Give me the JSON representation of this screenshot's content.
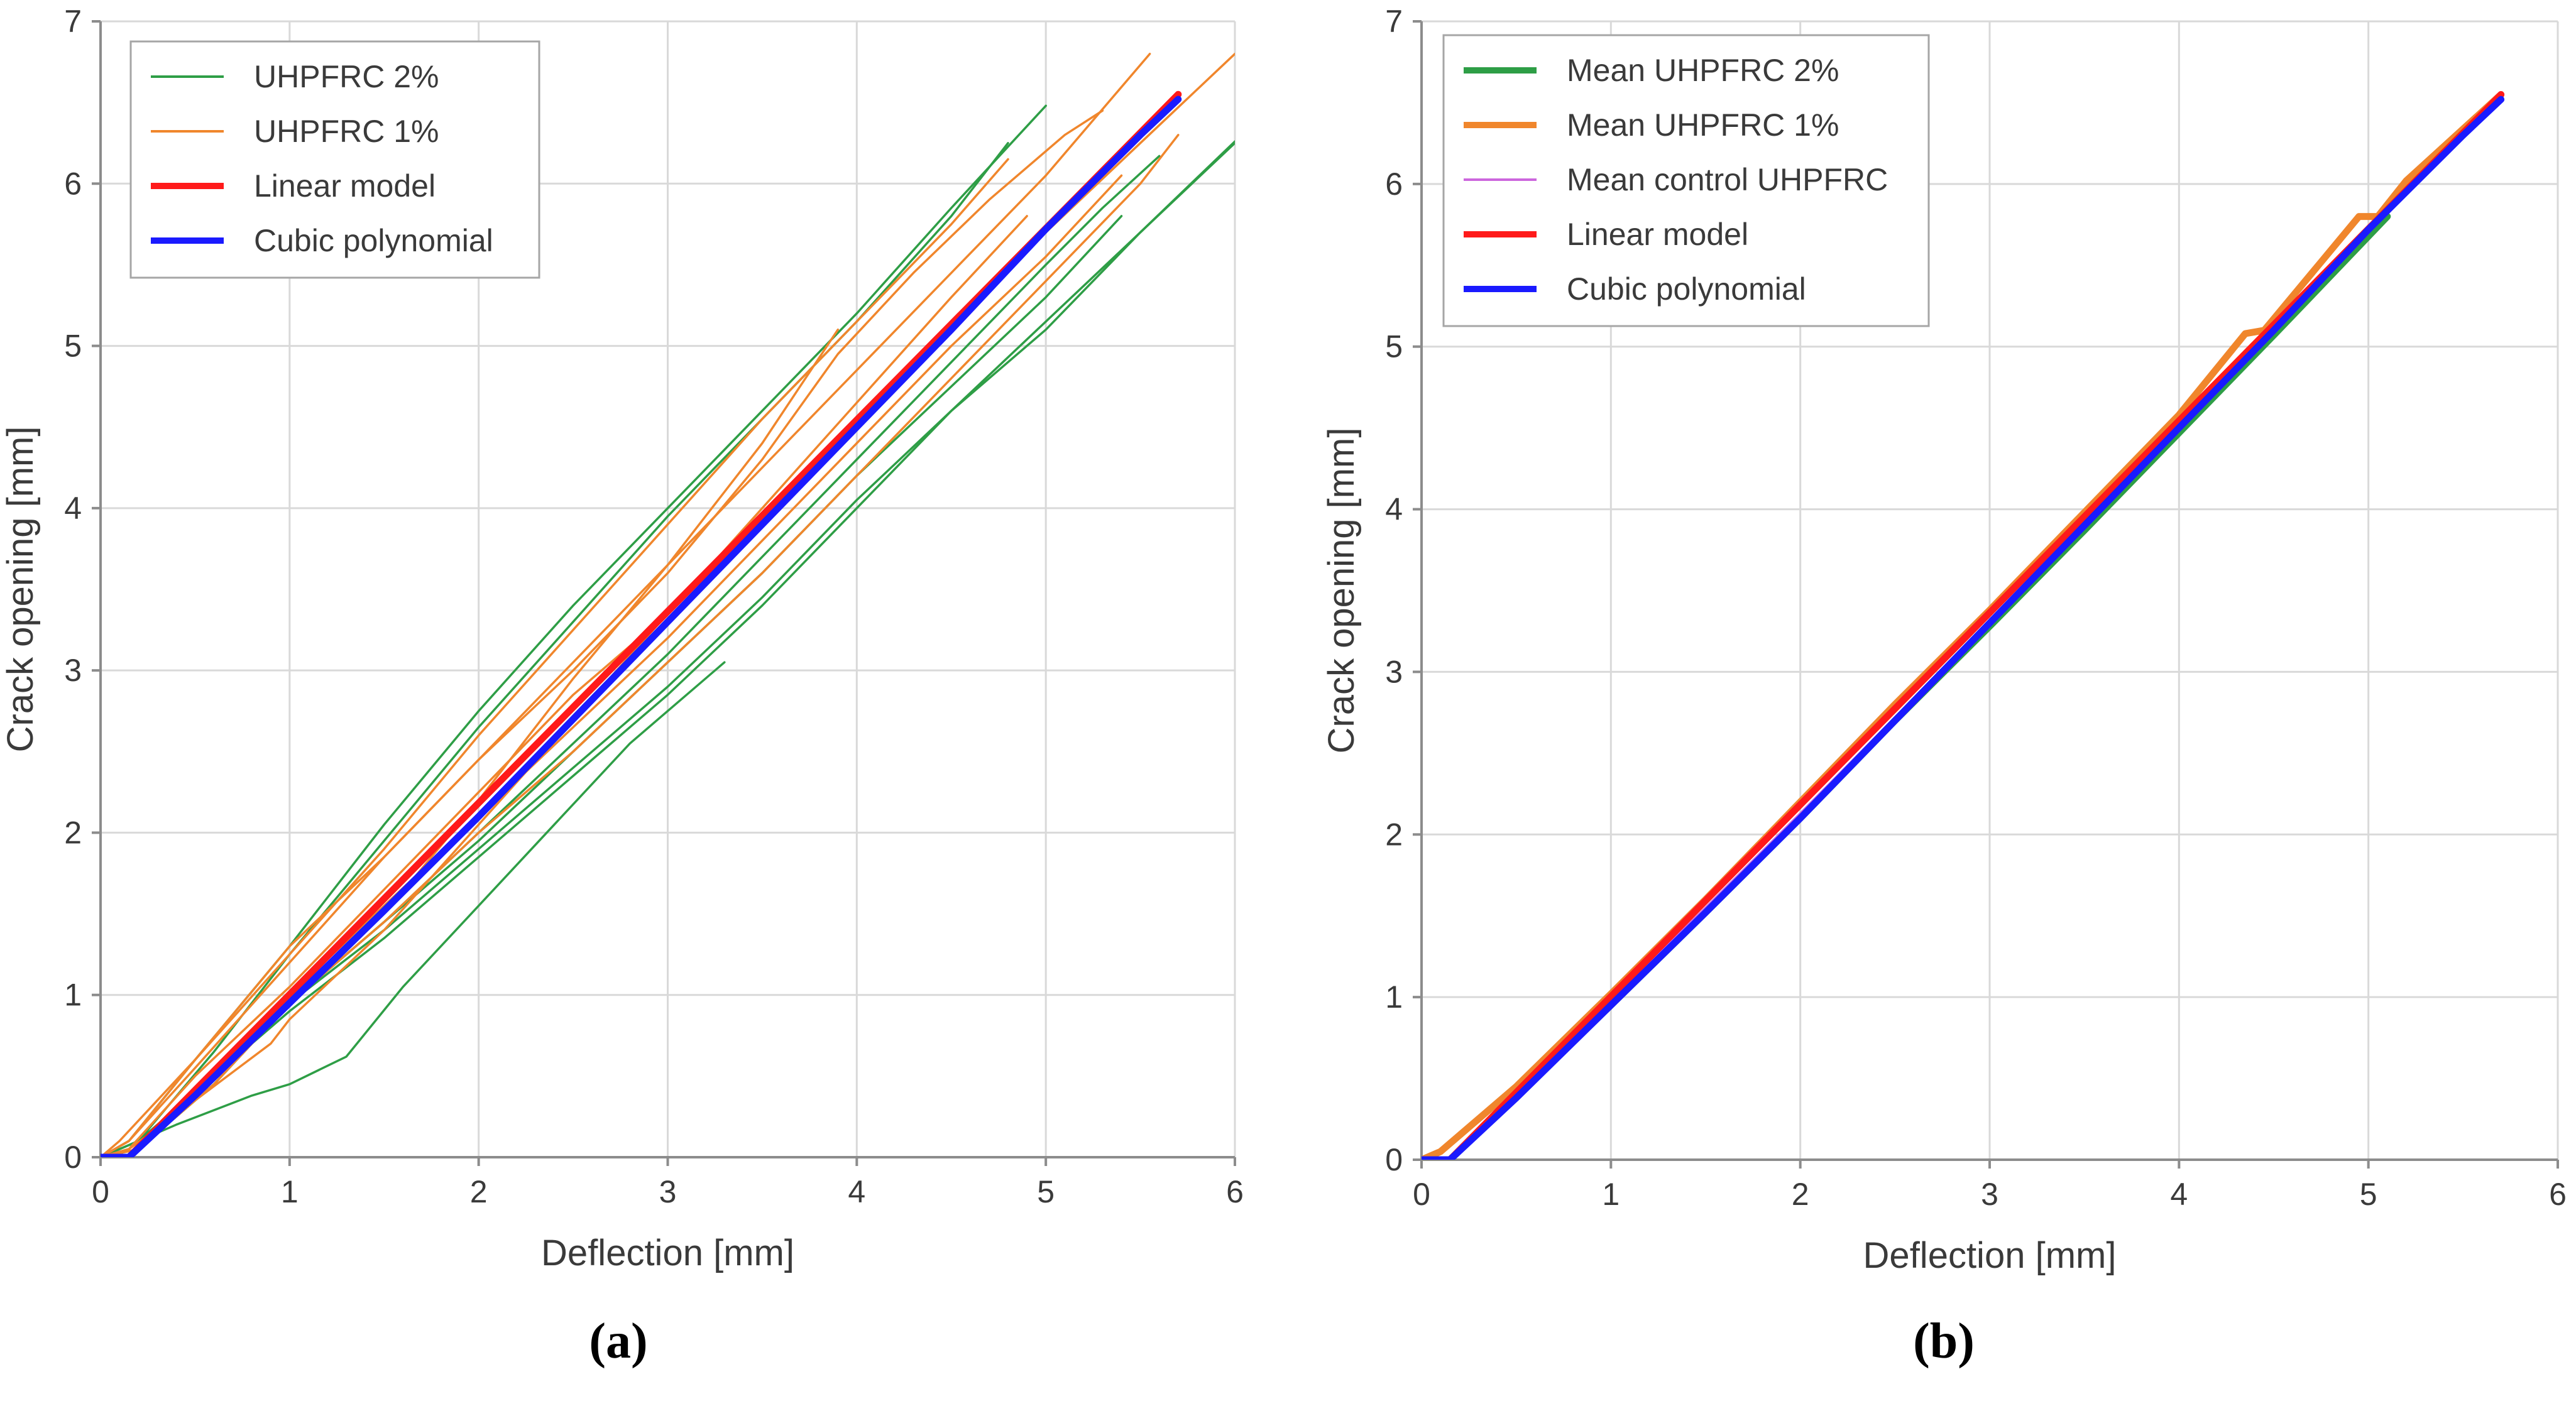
{
  "chart_data": [
    {
      "panel": "a",
      "type": "line",
      "title": "",
      "xlabel": "Deflection [mm]",
      "ylabel": "Crack opening [mm]",
      "xlim": [
        0,
        6
      ],
      "ylim": [
        0,
        7
      ],
      "xticks": [
        0,
        1,
        2,
        3,
        4,
        5,
        6
      ],
      "yticks": [
        0,
        1,
        2,
        3,
        4,
        5,
        6,
        7
      ],
      "grid": true,
      "legend_position": "top-left",
      "legend": [
        {
          "label": "UHPFRC 2%",
          "color": "#2e9e46",
          "weight": "thin"
        },
        {
          "label": "UHPFRC 1%",
          "color": "#f0862c",
          "weight": "thin"
        },
        {
          "label": "Linear model",
          "color": "#ff1a1a",
          "weight": "thick"
        },
        {
          "label": "Cubic polynomial",
          "color": "#1a1aff",
          "weight": "thick"
        }
      ],
      "series": [
        {
          "name": "UHPFRC 2%",
          "color": "#2e9e46",
          "width": "thin",
          "x": [
            0,
            0.15,
            0.5,
            1.0,
            1.5,
            2.0,
            2.5,
            3.0,
            3.5,
            4.0,
            4.5,
            5.0
          ],
          "y": [
            0,
            0.1,
            0.6,
            1.3,
            2.05,
            2.75,
            3.4,
            4.0,
            4.6,
            5.2,
            5.85,
            6.48
          ]
        },
        {
          "name": "UHPFRC 2%",
          "color": "#2e9e46",
          "width": "thin",
          "x": [
            0,
            0.2,
            0.6,
            1.0,
            1.5,
            2.0,
            2.5,
            3.0,
            3.5,
            4.0,
            4.5,
            4.8
          ],
          "y": [
            0,
            0.1,
            0.65,
            1.25,
            1.95,
            2.65,
            3.3,
            3.95,
            4.55,
            5.15,
            5.8,
            6.25
          ]
        },
        {
          "name": "UHPFRC 2%",
          "color": "#2e9e46",
          "width": "thin",
          "x": [
            0,
            0.15,
            0.5,
            1.0,
            1.5,
            2.0,
            2.5,
            3.0,
            3.5,
            4.0,
            4.5,
            5.0,
            5.5,
            6.0
          ],
          "y": [
            0,
            0.05,
            0.4,
            0.9,
            1.35,
            1.85,
            2.35,
            2.85,
            3.4,
            4.0,
            4.6,
            5.1,
            5.7,
            6.25
          ]
        },
        {
          "name": "UHPFRC 2%",
          "color": "#2e9e46",
          "width": "thin",
          "x": [
            0,
            0.2,
            0.6,
            1.0,
            1.5,
            2.0,
            2.5,
            3.0,
            3.5,
            4.0,
            4.5,
            5.0,
            5.5,
            6.0
          ],
          "y": [
            0,
            0.05,
            0.45,
            0.95,
            1.4,
            1.9,
            2.4,
            2.9,
            3.45,
            4.05,
            4.6,
            5.15,
            5.7,
            6.26
          ]
        },
        {
          "name": "UHPFRC 2%",
          "color": "#2e9e46",
          "width": "thin",
          "x": [
            0,
            0.2,
            0.6,
            1.0,
            1.5,
            2.0,
            2.5,
            3.0,
            3.5,
            4.0,
            4.5,
            5.0,
            5.4
          ],
          "y": [
            0,
            0.05,
            0.45,
            0.95,
            1.45,
            1.95,
            2.5,
            3.05,
            3.6,
            4.2,
            4.75,
            5.3,
            5.8
          ]
        },
        {
          "name": "UHPFRC 2%",
          "color": "#2e9e46",
          "width": "thin",
          "x": [
            0,
            0.2,
            0.6,
            1.0,
            1.5,
            2.0,
            2.5,
            3.0,
            3.5,
            4.0,
            4.5,
            5.0,
            5.3,
            5.6
          ],
          "y": [
            0,
            0.05,
            0.45,
            0.95,
            1.45,
            2.0,
            2.55,
            3.1,
            3.7,
            4.3,
            4.9,
            5.5,
            5.85,
            6.17
          ]
        },
        {
          "name": "UHPFRC 2%",
          "color": "#2e9e46",
          "width": "thin",
          "x": [
            0,
            0.1,
            0.4,
            0.8,
            1.0,
            1.3,
            1.6,
            2.0,
            2.4,
            2.8,
            3.3
          ],
          "y": [
            0,
            0.05,
            0.2,
            0.38,
            0.45,
            0.62,
            1.05,
            1.55,
            2.05,
            2.55,
            3.05
          ]
        },
        {
          "name": "UHPFRC 1%",
          "color": "#f0862c",
          "width": "thin",
          "x": [
            0,
            0.15,
            0.5,
            1.0,
            1.5,
            2.0,
            2.5,
            3.0,
            3.5,
            4.0,
            4.5,
            4.8
          ],
          "y": [
            0,
            0.1,
            0.6,
            1.25,
            1.9,
            2.6,
            3.25,
            3.9,
            4.55,
            5.15,
            5.75,
            6.15
          ]
        },
        {
          "name": "UHPFRC 1%",
          "color": "#f0862c",
          "width": "thin",
          "x": [
            0,
            0.15,
            0.5,
            1.0,
            1.5,
            2.0,
            2.5,
            3.0,
            3.5,
            3.9,
            4.3,
            4.7,
            5.1,
            5.3
          ],
          "y": [
            0,
            0.1,
            0.55,
            1.2,
            1.85,
            2.45,
            3.0,
            3.6,
            4.3,
            4.95,
            5.45,
            5.9,
            6.3,
            6.45
          ]
        },
        {
          "name": "UHPFRC 1%",
          "color": "#f0862c",
          "width": "thin",
          "x": [
            0,
            0.1,
            0.5,
            1.0,
            1.5,
            2.0,
            2.5,
            3.0,
            3.5,
            4.0,
            4.5,
            5.0,
            5.55
          ],
          "y": [
            0,
            0.1,
            0.6,
            1.3,
            1.85,
            2.45,
            3.05,
            3.65,
            4.25,
            4.85,
            5.45,
            6.05,
            6.8
          ]
        },
        {
          "name": "UHPFRC 1%",
          "color": "#f0862c",
          "width": "thin",
          "x": [
            0,
            0.15,
            0.5,
            1.0,
            1.5,
            2.0,
            2.5,
            3.0,
            3.5,
            4.0,
            4.5,
            5.0,
            5.5,
            6.0
          ],
          "y": [
            0,
            0.05,
            0.5,
            1.05,
            1.65,
            2.25,
            2.85,
            3.35,
            3.95,
            4.55,
            5.15,
            5.7,
            6.25,
            6.8
          ]
        },
        {
          "name": "UHPFRC 1%",
          "color": "#f0862c",
          "width": "thin",
          "x": [
            0,
            0.15,
            0.5,
            0.9,
            1.0,
            1.5,
            2.0,
            2.5,
            3.0,
            3.5,
            4.0,
            4.5,
            4.9
          ],
          "y": [
            0,
            0.05,
            0.35,
            0.7,
            0.85,
            1.4,
            2.05,
            2.7,
            3.35,
            4.0,
            4.65,
            5.3,
            5.8
          ]
        },
        {
          "name": "UHPFRC 1%",
          "color": "#f0862c",
          "width": "thin",
          "x": [
            0,
            0.2,
            0.6,
            1.0,
            1.5,
            2.0,
            2.5,
            3.0,
            3.5,
            4.0,
            4.5,
            5.0,
            5.5,
            5.7
          ],
          "y": [
            0,
            0.05,
            0.5,
            0.95,
            1.45,
            2.0,
            2.5,
            3.05,
            3.6,
            4.2,
            4.8,
            5.4,
            6.0,
            6.3
          ]
        },
        {
          "name": "UHPFRC 1%",
          "color": "#f0862c",
          "width": "thin",
          "x": [
            0,
            0.2,
            0.6,
            1.0,
            1.5,
            2.0,
            2.5,
            3.0,
            3.5,
            3.9
          ],
          "y": [
            0,
            0.05,
            0.45,
            0.95,
            1.5,
            2.2,
            2.95,
            3.65,
            4.4,
            5.1
          ]
        },
        {
          "name": "UHPFRC 1%",
          "color": "#f0862c",
          "width": "thin",
          "x": [
            0,
            0.2,
            0.6,
            1.0,
            1.5,
            2.0,
            2.5,
            3.0,
            3.5,
            4.0,
            4.5,
            5.0,
            5.4
          ],
          "y": [
            0,
            0.05,
            0.5,
            1.0,
            1.55,
            2.1,
            2.65,
            3.2,
            3.8,
            4.4,
            5.0,
            5.55,
            6.05
          ]
        },
        {
          "name": "Linear model",
          "color": "#ff1a1a",
          "width": "thick",
          "x": [
            0,
            0.15,
            5.7
          ],
          "y": [
            0,
            0,
            6.55
          ]
        },
        {
          "name": "Cubic polynomial",
          "color": "#1a1aff",
          "width": "thick",
          "x": [
            0,
            0.15,
            0.5,
            1.0,
            1.5,
            2.0,
            2.5,
            3.0,
            3.5,
            4.0,
            4.5,
            5.0,
            5.5,
            5.7
          ],
          "y": [
            0,
            0,
            0.38,
            0.95,
            1.52,
            2.1,
            2.7,
            3.3,
            3.9,
            4.5,
            5.1,
            5.72,
            6.3,
            6.52
          ]
        }
      ]
    },
    {
      "panel": "b",
      "type": "line",
      "title": "",
      "xlabel": "Deflection [mm]",
      "ylabel": "Crack opening [mm]",
      "xlim": [
        0,
        6
      ],
      "ylim": [
        0,
        7
      ],
      "xticks": [
        0,
        1,
        2,
        3,
        4,
        5,
        6
      ],
      "yticks": [
        0,
        1,
        2,
        3,
        4,
        5,
        6,
        7
      ],
      "grid": true,
      "legend_position": "top-left",
      "legend": [
        {
          "label": "Mean UHPFRC 2%",
          "color": "#2e9e46",
          "weight": "thick"
        },
        {
          "label": "Mean UHPFRC 1%",
          "color": "#f0862c",
          "weight": "thick"
        },
        {
          "label": "Mean control UHPFRC",
          "color": "#cc66dd",
          "weight": "thin"
        },
        {
          "label": "Linear model",
          "color": "#ff1a1a",
          "weight": "thick"
        },
        {
          "label": "Cubic polynomial",
          "color": "#1a1aff",
          "weight": "thick"
        }
      ],
      "series": [
        {
          "name": "Mean UHPFRC 2%",
          "color": "#2e9e46",
          "width": "thick",
          "x": [
            0,
            0.15,
            0.6,
            1.0,
            1.5,
            2.0,
            2.5,
            3.0,
            3.5,
            4.0,
            4.5,
            5.1
          ],
          "y": [
            0,
            0,
            0.5,
            0.95,
            1.52,
            2.1,
            2.7,
            3.28,
            3.87,
            4.47,
            5.07,
            5.8
          ]
        },
        {
          "name": "Mean UHPFRC 1%",
          "color": "#f0862c",
          "width": "thick",
          "x": [
            0,
            0.1,
            0.5,
            1.0,
            1.5,
            2.0,
            2.5,
            3.0,
            3.5,
            4.0,
            4.35,
            4.45,
            4.7,
            4.95,
            5.05,
            5.2,
            5.7
          ],
          "y": [
            0,
            0.05,
            0.45,
            1.02,
            1.6,
            2.2,
            2.8,
            3.38,
            3.98,
            4.58,
            5.08,
            5.1,
            5.45,
            5.8,
            5.8,
            6.02,
            6.55
          ]
        },
        {
          "name": "Mean control UHPFRC",
          "color": "#cc66dd",
          "width": "thin",
          "x": [
            0,
            0.15,
            0.6,
            1.0,
            1.5,
            2.0,
            2.5,
            3.0,
            3.5,
            4.0,
            4.5,
            5.0,
            5.7
          ],
          "y": [
            0,
            0,
            0.52,
            0.98,
            1.55,
            2.13,
            2.72,
            3.3,
            3.9,
            4.5,
            5.1,
            5.72,
            6.52
          ]
        },
        {
          "name": "Linear model",
          "color": "#ff1a1a",
          "width": "thick",
          "x": [
            0,
            0.15,
            5.7
          ],
          "y": [
            0,
            0,
            6.55
          ]
        },
        {
          "name": "Cubic polynomial",
          "color": "#1a1aff",
          "width": "thick",
          "x": [
            0,
            0.15,
            0.5,
            1.0,
            1.5,
            2.0,
            2.5,
            3.0,
            3.5,
            4.0,
            4.5,
            5.0,
            5.5,
            5.7
          ],
          "y": [
            0,
            0,
            0.38,
            0.95,
            1.52,
            2.1,
            2.7,
            3.3,
            3.9,
            4.5,
            5.1,
            5.72,
            6.3,
            6.52
          ]
        }
      ]
    }
  ],
  "captions": {
    "a": "(a)",
    "b": "(b)"
  },
  "colors": {
    "grid": "#d9d9d9",
    "axis": "#8c8c8c",
    "text": "#3a3a3a",
    "legend_border": "#a6a6a6"
  }
}
